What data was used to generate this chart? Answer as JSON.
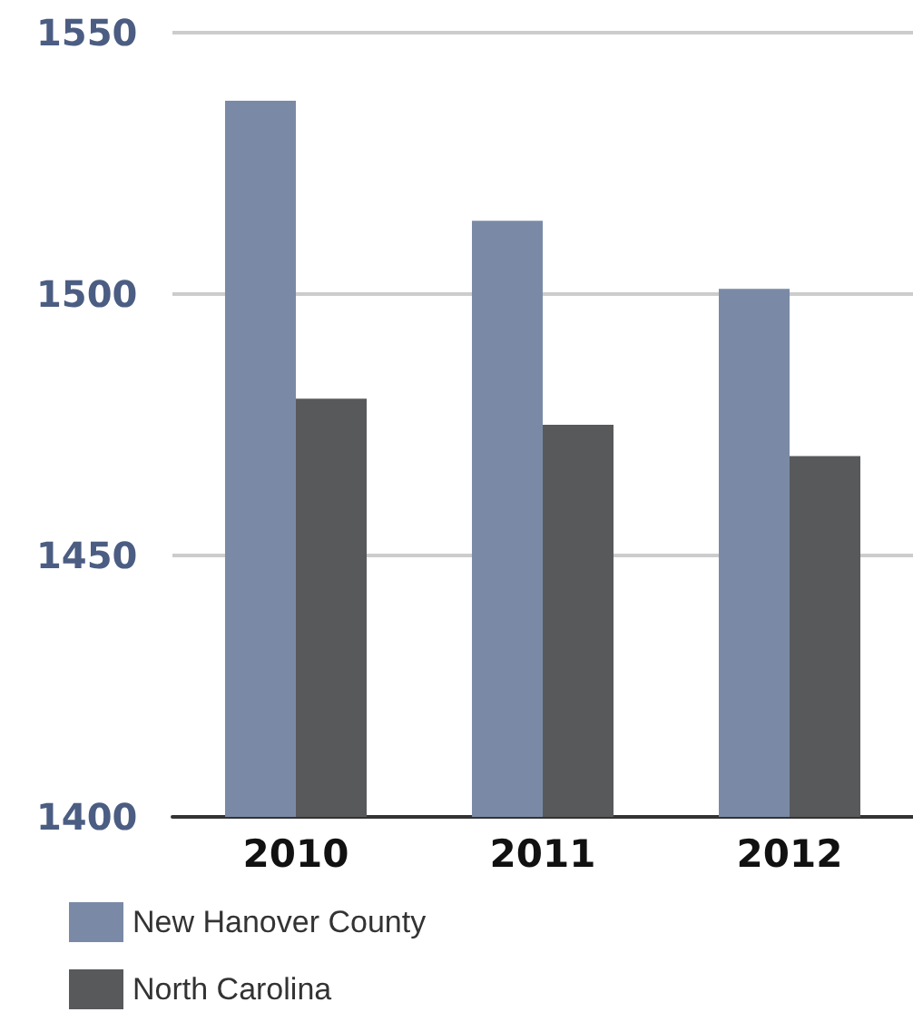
{
  "chart_data": {
    "type": "bar",
    "categories": [
      "2010",
      "2011",
      "2012"
    ],
    "series": [
      {
        "name": "New Hanover County",
        "color": "#7a8aa6",
        "values": [
          1537,
          1514,
          1501
        ]
      },
      {
        "name": "North Carolina",
        "color": "#58595b",
        "values": [
          1480,
          1475,
          1469
        ]
      }
    ],
    "ylim": [
      1400,
      1550
    ],
    "yticks": [
      1400,
      1450,
      1500,
      1550
    ],
    "grid": "y",
    "legend": "bottom left"
  }
}
